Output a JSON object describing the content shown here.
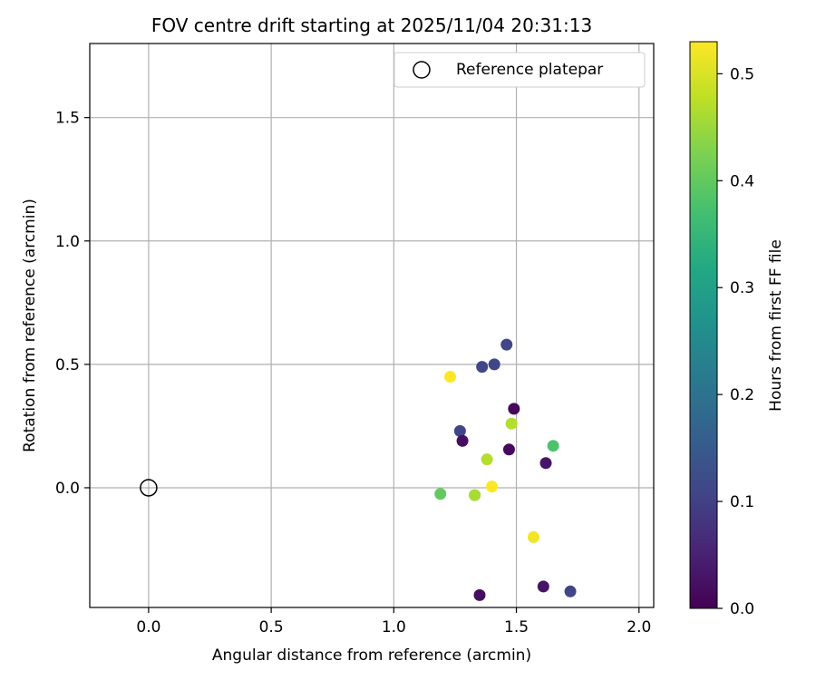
{
  "chart_data": {
    "type": "scatter",
    "title": "FOV centre drift starting at 2025/11/04 20:31:13",
    "xlabel": "Angular distance from reference (arcmin)",
    "ylabel": "Rotation from reference (arcmin)",
    "xlim": [
      -0.24,
      2.06
    ],
    "ylim": [
      -0.485,
      1.8
    ],
    "xticks": [
      0.0,
      0.5,
      1.0,
      1.5,
      2.0
    ],
    "xtick_labels": [
      "0.0",
      "0.5",
      "1.0",
      "1.5",
      "2.0"
    ],
    "yticks": [
      0.0,
      0.5,
      1.0,
      1.5
    ],
    "ytick_labels": [
      "0.0",
      "0.5",
      "1.0",
      "1.5"
    ],
    "grid": true,
    "legend": {
      "position": "top-right",
      "label": "Reference platepar"
    },
    "reference_point": {
      "x": 0.0,
      "y": 0.0
    },
    "colorbar": {
      "label": "Hours from first FF file",
      "min": 0.0,
      "max": 0.53,
      "ticks": [
        0.0,
        0.1,
        0.2,
        0.3,
        0.4,
        0.5
      ],
      "tick_labels": [
        "0.0",
        "0.1",
        "0.2",
        "0.3",
        "0.4",
        "0.5"
      ],
      "colormap": "viridis"
    },
    "points": [
      {
        "x": 1.46,
        "y": 0.58,
        "hours": 0.11
      },
      {
        "x": 1.41,
        "y": 0.5,
        "hours": 0.11
      },
      {
        "x": 1.36,
        "y": 0.49,
        "hours": 0.11
      },
      {
        "x": 1.23,
        "y": 0.45,
        "hours": 0.53
      },
      {
        "x": 1.49,
        "y": 0.32,
        "hours": 0.01
      },
      {
        "x": 1.48,
        "y": 0.26,
        "hours": 0.47
      },
      {
        "x": 1.27,
        "y": 0.23,
        "hours": 0.11
      },
      {
        "x": 1.28,
        "y": 0.19,
        "hours": 0.02
      },
      {
        "x": 1.65,
        "y": 0.17,
        "hours": 0.38
      },
      {
        "x": 1.47,
        "y": 0.155,
        "hours": 0.01
      },
      {
        "x": 1.38,
        "y": 0.115,
        "hours": 0.47
      },
      {
        "x": 1.62,
        "y": 0.1,
        "hours": 0.03
      },
      {
        "x": 1.4,
        "y": 0.005,
        "hours": 0.53
      },
      {
        "x": 1.19,
        "y": -0.025,
        "hours": 0.4
      },
      {
        "x": 1.33,
        "y": -0.03,
        "hours": 0.4
      },
      {
        "x": 1.33,
        "y": -0.03,
        "hours": 0.46
      },
      {
        "x": 1.57,
        "y": -0.2,
        "hours": 0.52
      },
      {
        "x": 1.61,
        "y": -0.4,
        "hours": 0.03
      },
      {
        "x": 1.72,
        "y": -0.42,
        "hours": 0.11
      },
      {
        "x": 1.35,
        "y": -0.435,
        "hours": 0.02
      }
    ]
  }
}
